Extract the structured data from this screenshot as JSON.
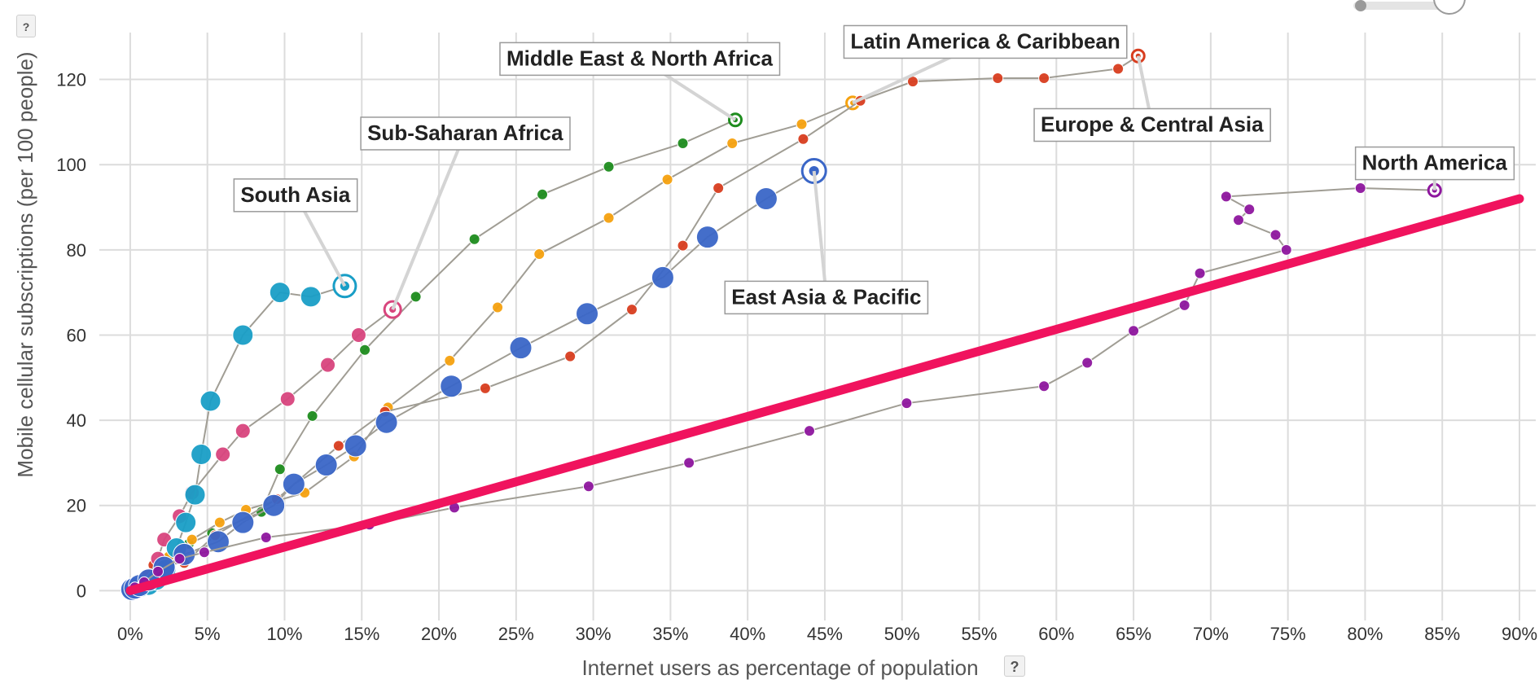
{
  "chart_data": {
    "type": "scatter",
    "xlabel": "Internet users as percentage of population",
    "ylabel": "Mobile cellular subscriptions (per 100 people)",
    "xlim": [
      -2,
      90
    ],
    "ylim": [
      -7,
      131
    ],
    "x_ticks": [
      0,
      5,
      10,
      15,
      20,
      25,
      30,
      35,
      40,
      45,
      50,
      55,
      60,
      65,
      70,
      75,
      80,
      85,
      90
    ],
    "x_tick_labels": [
      "0%",
      "5%",
      "10%",
      "15%",
      "20%",
      "25%",
      "30%",
      "35%",
      "40%",
      "45%",
      "50%",
      "55%",
      "60%",
      "65%",
      "70%",
      "75%",
      "80%",
      "85%",
      "90%"
    ],
    "y_ticks": [
      0,
      20,
      40,
      60,
      80,
      100,
      120
    ],
    "y_tick_labels": [
      "0",
      "20",
      "40",
      "60",
      "80",
      "100",
      "120"
    ],
    "grid": true,
    "reference_line": {
      "color": "#f0135e",
      "points": [
        [
          0,
          0
        ],
        [
          90,
          92
        ]
      ]
    },
    "series": [
      {
        "name": "Middle East & North Africa",
        "color": "#1e8c1e",
        "size": "small",
        "points": [
          [
            0.1,
            0.3
          ],
          [
            0.3,
            0.8
          ],
          [
            0.7,
            1.5
          ],
          [
            1.3,
            3.5
          ],
          [
            2.3,
            7.5
          ],
          [
            3.8,
            11
          ],
          [
            5.3,
            13.5
          ],
          [
            8.5,
            18.5
          ],
          [
            9.7,
            28.5
          ],
          [
            11.8,
            41
          ],
          [
            15.2,
            56.5
          ],
          [
            18.5,
            69
          ],
          [
            22.3,
            82.5
          ],
          [
            26.7,
            93
          ],
          [
            31,
            99.5
          ],
          [
            35.8,
            105
          ],
          [
            39.2,
            110.5
          ]
        ],
        "label": {
          "text": "Middle East & North Africa",
          "anchor": [
            39.2,
            110.5
          ],
          "box_center": [
            33,
            125
          ]
        }
      },
      {
        "name": "Latin America & Caribbean",
        "color": "#f5a10f",
        "size": "small",
        "points": [
          [
            0.2,
            0.5
          ],
          [
            0.7,
            1.8
          ],
          [
            1.5,
            4
          ],
          [
            2.5,
            8
          ],
          [
            4,
            12
          ],
          [
            5.8,
            16
          ],
          [
            7.5,
            19
          ],
          [
            11.3,
            23
          ],
          [
            14.5,
            31.5
          ],
          [
            16.7,
            43
          ],
          [
            20.7,
            54
          ],
          [
            23.8,
            66.5
          ],
          [
            26.5,
            79
          ],
          [
            31,
            87.5
          ],
          [
            34.8,
            96.5
          ],
          [
            39,
            105
          ],
          [
            43.5,
            109.5
          ],
          [
            46.8,
            114.5
          ]
        ],
        "label": {
          "text": "Latin America & Caribbean",
          "anchor": [
            46.8,
            114.5
          ],
          "box_center": [
            55.4,
            129
          ]
        }
      },
      {
        "name": "Europe & Central Asia",
        "color": "#d83d1f",
        "size": "small",
        "points": [
          [
            0.3,
            0.8
          ],
          [
            0.8,
            2.5
          ],
          [
            1.5,
            6
          ],
          [
            3.5,
            6.5
          ],
          [
            5.5,
            13
          ],
          [
            9.5,
            21.5
          ],
          [
            13.5,
            34
          ],
          [
            16.5,
            42
          ],
          [
            23,
            47.5
          ],
          [
            28.5,
            55
          ],
          [
            32.5,
            66
          ],
          [
            35.8,
            81
          ],
          [
            38.1,
            94.5
          ],
          [
            43.6,
            106
          ],
          [
            47.3,
            115
          ],
          [
            50.7,
            119.5
          ],
          [
            56.2,
            120.3
          ],
          [
            59.2,
            120.3
          ],
          [
            64,
            122.5
          ],
          [
            65.3,
            125.5
          ]
        ],
        "label": {
          "text": "Europe & Central Asia",
          "anchor": [
            65.3,
            125.5
          ],
          "box_center": [
            66.2,
            109.5
          ]
        }
      },
      {
        "name": "Sub-Saharan Africa",
        "color": "#d8457d",
        "size": "medium",
        "points": [
          [
            0.1,
            0.3
          ],
          [
            0.3,
            0.8
          ],
          [
            0.7,
            1.8
          ],
          [
            1.2,
            3.5
          ],
          [
            1.8,
            7.5
          ],
          [
            2.2,
            12
          ],
          [
            3.2,
            17.5
          ],
          [
            4,
            23
          ],
          [
            6,
            32
          ],
          [
            7.3,
            37.5
          ],
          [
            10.2,
            45
          ],
          [
            12.8,
            53
          ],
          [
            14.8,
            60
          ],
          [
            17,
            66
          ]
        ],
        "label": {
          "text": "Sub-Saharan Africa",
          "anchor": [
            17,
            66
          ],
          "box_center": [
            21.7,
            107.5
          ]
        }
      },
      {
        "name": "South Asia",
        "color": "#199ec6",
        "size": "large",
        "points": [
          [
            0.1,
            0.2
          ],
          [
            0.3,
            0.5
          ],
          [
            0.7,
            0.9
          ],
          [
            1.2,
            1.3
          ],
          [
            1.7,
            2.5
          ],
          [
            2.3,
            5
          ],
          [
            3,
            10
          ],
          [
            3.6,
            16
          ],
          [
            4.2,
            22.5
          ],
          [
            4.6,
            32
          ],
          [
            5.2,
            44.5
          ],
          [
            7.3,
            60
          ],
          [
            9.7,
            70
          ],
          [
            11.7,
            69
          ],
          [
            13.9,
            71.5
          ]
        ],
        "label": {
          "text": "South Asia",
          "anchor": [
            13.9,
            71.5
          ],
          "box_center": [
            10.7,
            93
          ]
        }
      },
      {
        "name": "East Asia & Pacific",
        "color": "#3a66c7",
        "size": "xlarge",
        "points": [
          [
            0.1,
            0.3
          ],
          [
            0.3,
            0.6
          ],
          [
            0.6,
            1.2
          ],
          [
            1.2,
            2.5
          ],
          [
            2.2,
            5.5
          ],
          [
            3.5,
            8.5
          ],
          [
            5.7,
            11.5
          ],
          [
            7.3,
            16
          ],
          [
            9.3,
            20
          ],
          [
            10.6,
            25
          ],
          [
            12.7,
            29.5
          ],
          [
            14.6,
            34
          ],
          [
            16.6,
            39.5
          ],
          [
            20.8,
            48
          ],
          [
            25.3,
            57
          ],
          [
            29.6,
            65
          ],
          [
            34.5,
            73.5
          ],
          [
            37.4,
            83
          ],
          [
            41.2,
            92
          ],
          [
            44.3,
            98.5
          ]
        ],
        "label": {
          "text": "East Asia & Pacific",
          "anchor": [
            44.3,
            98.5
          ],
          "box_center": [
            45.1,
            69
          ]
        }
      },
      {
        "name": "North America",
        "color": "#8e169e",
        "size": "small",
        "points": [
          [
            0.3,
            0.8
          ],
          [
            0.9,
            2
          ],
          [
            1.8,
            4.5
          ],
          [
            3.2,
            7.5
          ],
          [
            4.8,
            9
          ],
          [
            8.8,
            12.5
          ],
          [
            15.5,
            15.5
          ],
          [
            21,
            19.5
          ],
          [
            29.7,
            24.5
          ],
          [
            36.2,
            30
          ],
          [
            44,
            37.5
          ],
          [
            50.3,
            44
          ],
          [
            59.2,
            48
          ],
          [
            62,
            53.5
          ],
          [
            65,
            61
          ],
          [
            68.3,
            67
          ],
          [
            69.3,
            74.5
          ],
          [
            74.9,
            80
          ],
          [
            74.2,
            83.5
          ],
          [
            71.8,
            87
          ],
          [
            72.5,
            89.5
          ],
          [
            71,
            92.5
          ],
          [
            79.7,
            94.5
          ],
          [
            84.5,
            94
          ]
        ],
        "label": {
          "text": "North America",
          "anchor": [
            84.5,
            94
          ],
          "box_center": [
            84.5,
            100.5
          ]
        }
      }
    ],
    "highlight": {
      "x_help": "?",
      "left_help": "?"
    }
  }
}
